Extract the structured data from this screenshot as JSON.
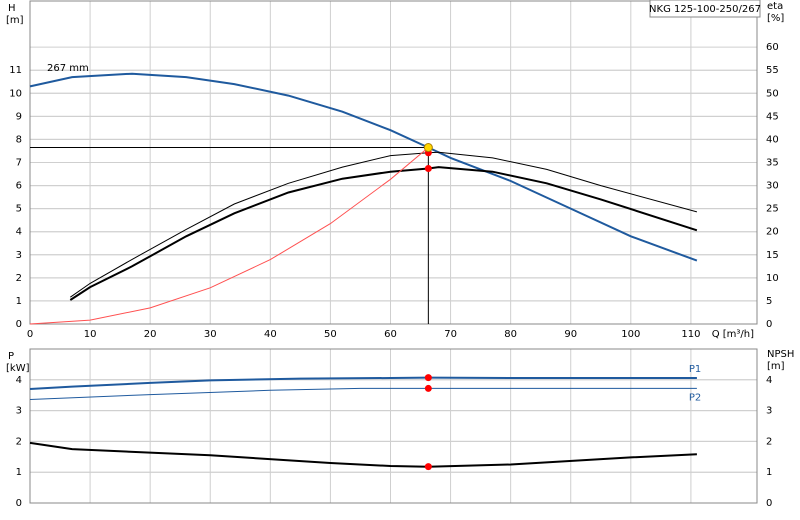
{
  "chart_data": [
    {
      "type": "line",
      "title": "NKG 125-100-250/267",
      "annotation": "267 mm",
      "xlabel": "Q [m³/h]",
      "ylabel": "H",
      "yunit": "[m]",
      "y2label": "eta",
      "y2unit": "[%]",
      "xlim": [
        0,
        121
      ],
      "xticks": [
        0,
        10,
        20,
        30,
        40,
        50,
        60,
        70,
        80,
        90,
        100,
        110
      ],
      "ylim": [
        0,
        14
      ],
      "yticks": [
        0,
        1,
        2,
        3,
        4,
        5,
        6,
        7,
        8,
        9,
        10,
        11
      ],
      "y2lim": [
        0,
        70
      ],
      "y2ticks": [
        0,
        5,
        10,
        15,
        20,
        25,
        30,
        35,
        40,
        45,
        50,
        55,
        60
      ],
      "grid": true,
      "duty_flow": 66.3,
      "duty_head": 7.65,
      "series": [
        {
          "color": "#1f5a9e",
          "width": 2,
          "x": [
            0,
            7,
            17,
            26,
            34,
            43,
            52,
            60,
            66.3,
            70,
            80,
            90,
            100,
            111
          ],
          "values": [
            10.3,
            10.7,
            10.85,
            10.7,
            10.4,
            9.9,
            9.2,
            8.4,
            7.65,
            7.2,
            6.2,
            5.0,
            3.8,
            2.75
          ]
        },
        {
          "color": "#000000",
          "width": 1,
          "axis": "y2",
          "x": [
            6.7,
            10,
            17,
            26,
            34,
            43,
            52,
            60,
            66.3,
            68,
            77,
            86,
            95,
            111
          ],
          "values": [
            5.8,
            8.8,
            14,
            20.5,
            26,
            30.5,
            34,
            36.5,
            37.1,
            37.2,
            36,
            33.5,
            30,
            24.3
          ]
        },
        {
          "color": "#000000",
          "width": 2,
          "axis": "y2",
          "x": [
            6.7,
            10,
            17,
            26,
            34,
            43,
            52,
            60,
            66.3,
            68,
            77,
            86,
            95,
            111
          ],
          "values": [
            5.2,
            8,
            12.5,
            19,
            24,
            28.5,
            31.5,
            33,
            33.7,
            34,
            33,
            30.5,
            27,
            20.3
          ]
        },
        {
          "color": "#ff5050",
          "width": 1,
          "x": [
            0,
            10,
            20,
            30,
            40,
            50,
            60,
            66.3
          ],
          "values": [
            0,
            0.17,
            0.7,
            1.57,
            2.79,
            4.35,
            6.27,
            7.65
          ]
        }
      ]
    },
    {
      "type": "line",
      "ylabel": "P",
      "yunit": "[kW]",
      "y2label": "NPSH",
      "y2unit": "[m]",
      "xlim": [
        0,
        121
      ],
      "ylim": [
        0,
        5
      ],
      "yticks": [
        0,
        1,
        2,
        3,
        4
      ],
      "y2lim": [
        0,
        5
      ],
      "y2ticks": [
        0,
        1,
        2,
        3,
        4
      ],
      "grid": true,
      "duty_flow": 66.3,
      "series": [
        {
          "name": "P1",
          "color": "#1f5a9e",
          "width": 2,
          "x": [
            0,
            7,
            20,
            30,
            45,
            60,
            66.3,
            80,
            111
          ],
          "values": [
            3.7,
            3.78,
            3.9,
            3.98,
            4.04,
            4.06,
            4.07,
            4.06,
            4.06
          ]
        },
        {
          "name": "P2",
          "color": "#1f5a9e",
          "width": 1,
          "x": [
            0,
            20,
            40,
            55,
            66.3,
            80,
            111
          ],
          "values": [
            3.36,
            3.52,
            3.66,
            3.72,
            3.72,
            3.72,
            3.72
          ]
        },
        {
          "color": "#000000",
          "width": 2,
          "axis": "y2",
          "x": [
            0,
            7,
            30,
            50,
            60,
            66.3,
            80,
            100,
            111
          ],
          "values": [
            1.95,
            1.75,
            1.55,
            1.3,
            1.2,
            1.18,
            1.25,
            1.48,
            1.58
          ]
        }
      ]
    }
  ]
}
